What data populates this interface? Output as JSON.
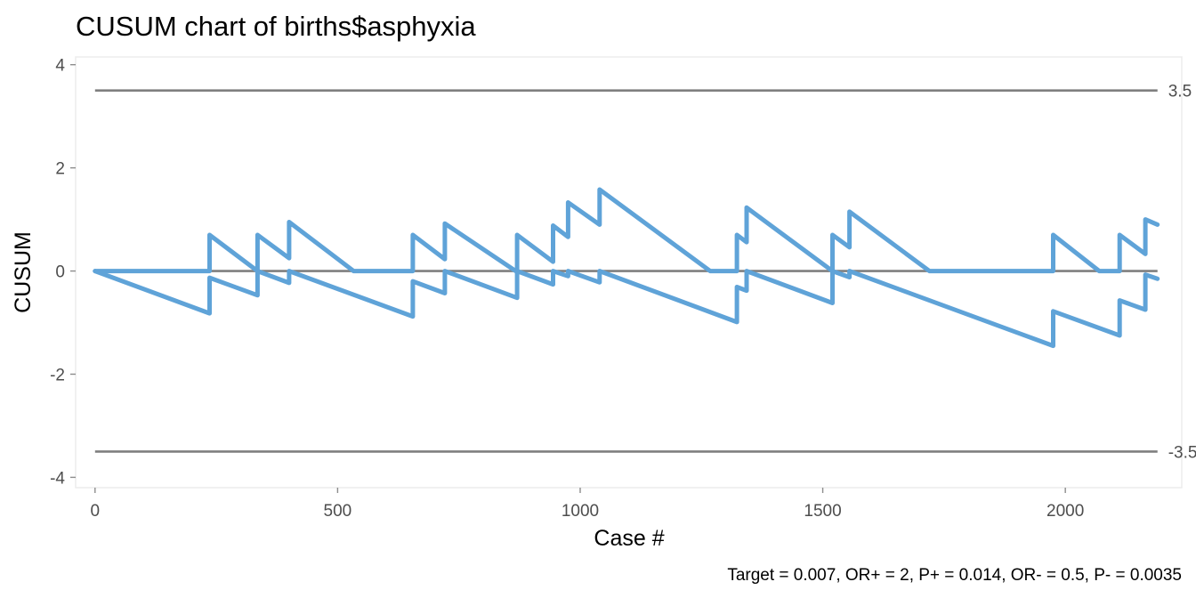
{
  "chart_data": {
    "type": "line",
    "title": "CUSUM chart of births$asphyxia",
    "xlabel": "Case #",
    "ylabel": "CUSUM",
    "caption": "Target = 0.007, OR+ = 2, P+ = 0.014, OR- = 0.5, P- = 0.0035",
    "xlim": [
      -40,
      2240
    ],
    "ylim": [
      -4.2,
      4.15
    ],
    "x_ticks": [
      0,
      500,
      1000,
      1500,
      2000
    ],
    "y_ticks": [
      -4,
      -2,
      0,
      2,
      4
    ],
    "grid": false,
    "legend": "none",
    "series_color": "#5fa3d8",
    "reference_lines": [
      {
        "y": 3.5,
        "label": "3.5"
      },
      {
        "y": 0,
        "label": ""
      },
      {
        "y": -3.5,
        "label": "-3.5"
      }
    ],
    "series": [
      {
        "values": [
          [
            0,
            0
          ],
          [
            236,
            0
          ],
          [
            236,
            0.7
          ],
          [
            335,
            0
          ],
          [
            335,
            0.7
          ],
          [
            400,
            0.25
          ],
          [
            400,
            0.95
          ],
          [
            533,
            0
          ],
          [
            655,
            0
          ],
          [
            655,
            0.7
          ],
          [
            721,
            0.23
          ],
          [
            721,
            0.92
          ],
          [
            867,
            0
          ],
          [
            870,
            0
          ],
          [
            870,
            0.7
          ],
          [
            944,
            0.18
          ],
          [
            944,
            0.88
          ],
          [
            975,
            0.66
          ],
          [
            975,
            1.33
          ],
          [
            1040,
            0.9
          ],
          [
            1040,
            1.58
          ],
          [
            1268,
            0
          ],
          [
            1323,
            0
          ],
          [
            1323,
            0.7
          ],
          [
            1343,
            0.56
          ],
          [
            1343,
            1.23
          ],
          [
            1520,
            0
          ],
          [
            1520,
            0.7
          ],
          [
            1555,
            0.46
          ],
          [
            1555,
            1.15
          ],
          [
            1720,
            0
          ],
          [
            1975,
            0
          ],
          [
            1975,
            0.7
          ],
          [
            2070,
            0
          ],
          [
            2112,
            0
          ],
          [
            2112,
            0.7
          ],
          [
            2165,
            0.33
          ],
          [
            2165,
            1.0
          ],
          [
            2190,
            0.9
          ]
        ]
      },
      {
        "values": [
          [
            0,
            0
          ],
          [
            236,
            -0.82
          ],
          [
            236,
            -0.13
          ],
          [
            335,
            -0.47
          ],
          [
            335,
            0.0
          ],
          [
            400,
            -0.23
          ],
          [
            400,
            0.0
          ],
          [
            655,
            -0.88
          ],
          [
            655,
            -0.2
          ],
          [
            721,
            -0.43
          ],
          [
            721,
            0.0
          ],
          [
            870,
            -0.52
          ],
          [
            870,
            0.0
          ],
          [
            944,
            -0.26
          ],
          [
            944,
            0.0
          ],
          [
            975,
            -0.1
          ],
          [
            975,
            0.0
          ],
          [
            1040,
            -0.22
          ],
          [
            1040,
            0.0
          ],
          [
            1323,
            -0.99
          ],
          [
            1323,
            -0.31
          ],
          [
            1343,
            -0.38
          ],
          [
            1343,
            0.0
          ],
          [
            1520,
            -0.62
          ],
          [
            1520,
            0.0
          ],
          [
            1555,
            -0.12
          ],
          [
            1555,
            0.0
          ],
          [
            1975,
            -1.45
          ],
          [
            1975,
            -0.78
          ],
          [
            2112,
            -1.25
          ],
          [
            2112,
            -0.57
          ],
          [
            2165,
            -0.75
          ],
          [
            2165,
            -0.07
          ],
          [
            2190,
            -0.15
          ]
        ]
      }
    ]
  }
}
